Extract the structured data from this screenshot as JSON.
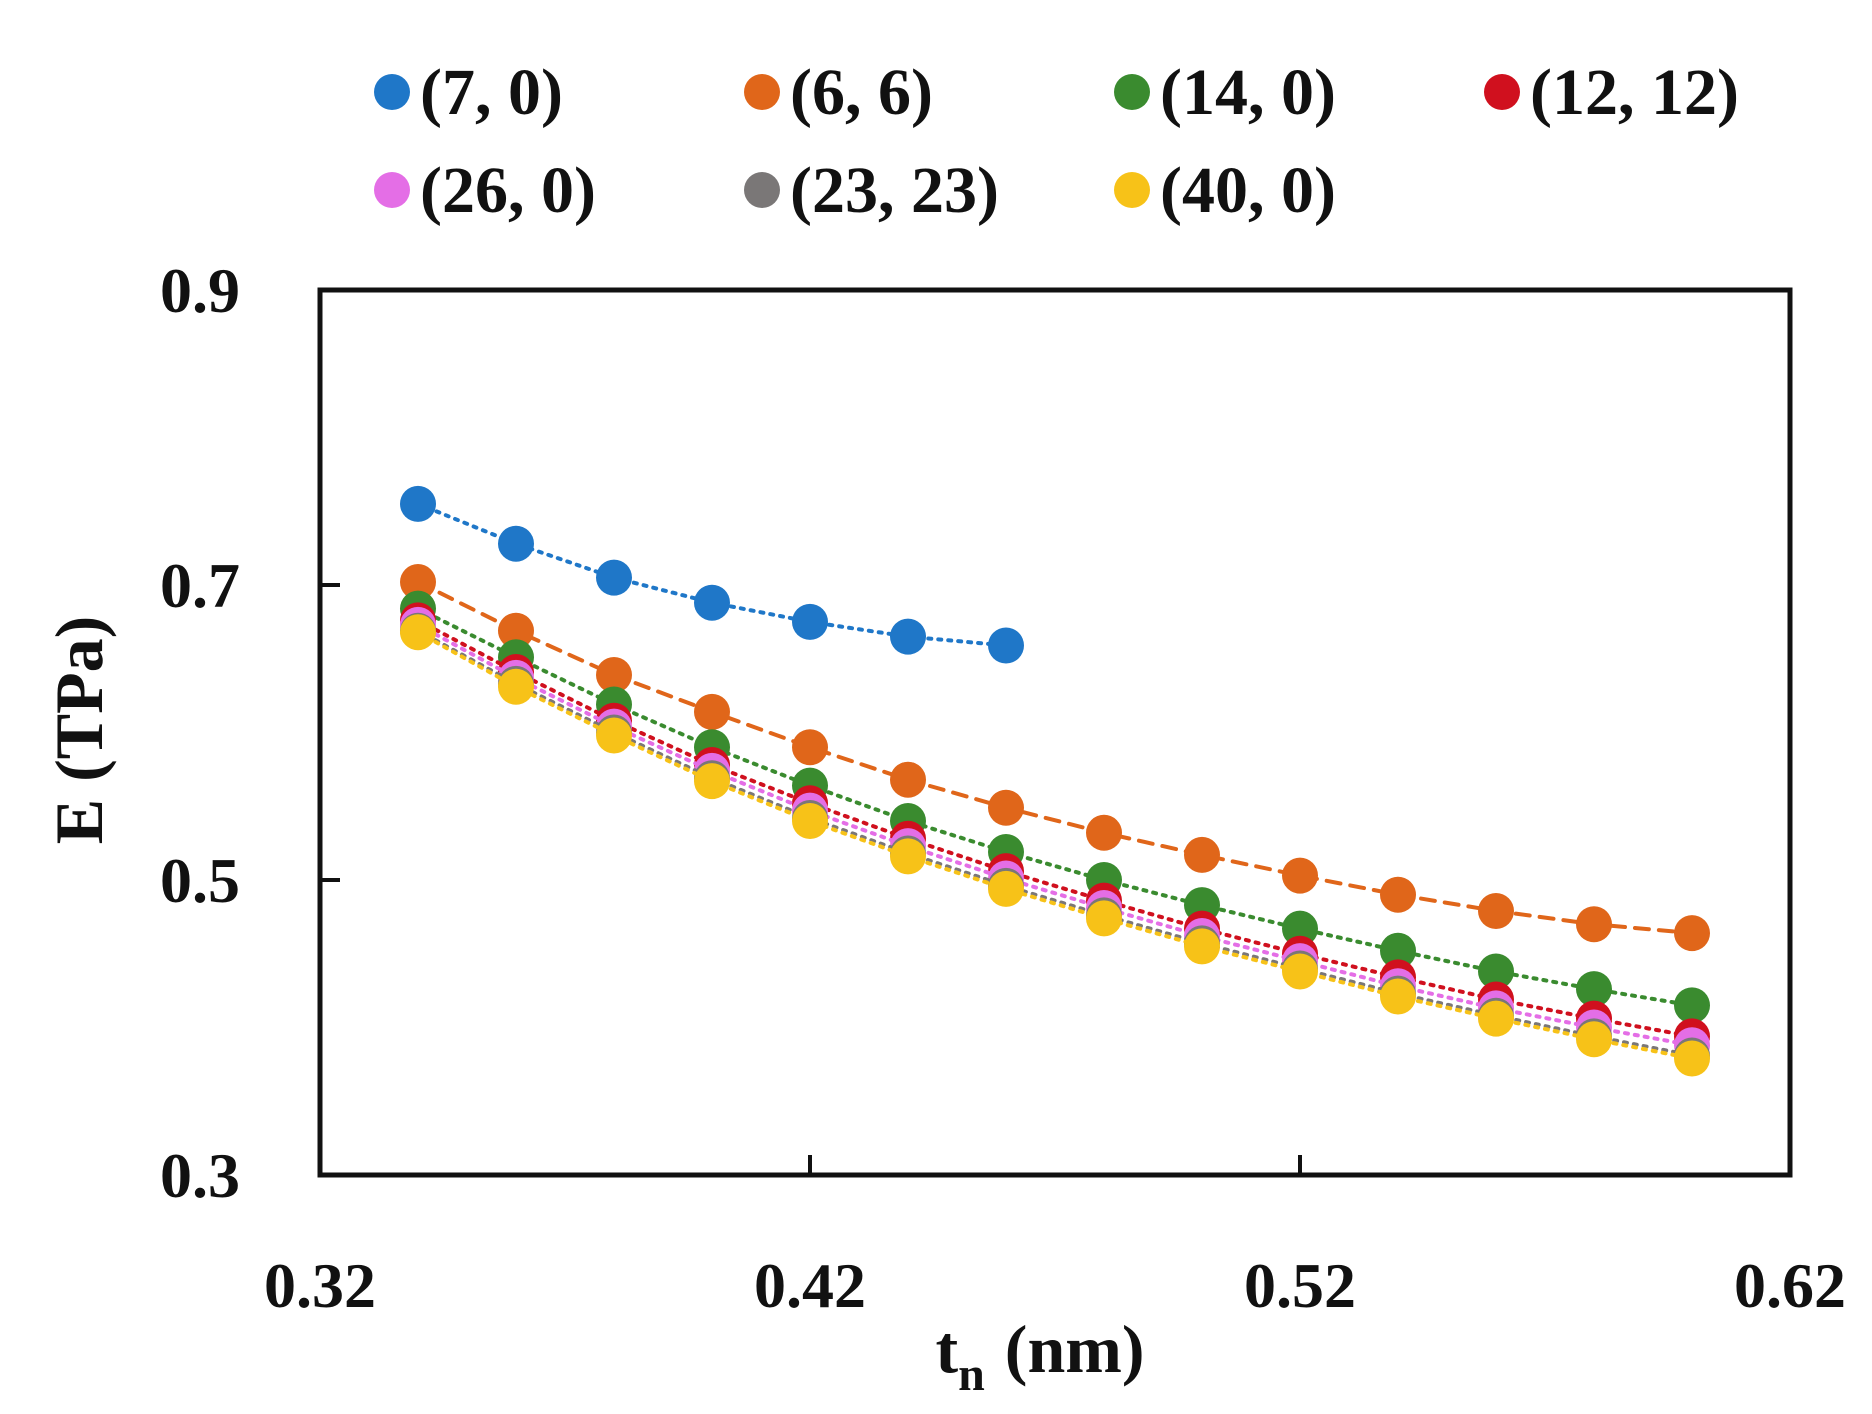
{
  "chart_data": {
    "type": "scatter",
    "title": "",
    "xlabel": "t",
    "xlabel_sub": "n",
    "xlabel_unit": "(nm)",
    "ylabel": "E (TPa)",
    "xlim": [
      0.32,
      0.62
    ],
    "ylim": [
      0.3,
      0.9
    ],
    "xticks": [
      0.32,
      0.42,
      0.52,
      0.62
    ],
    "xtick_labels": [
      "0.32",
      "0.42",
      "0.52",
      "0.62"
    ],
    "yticks": [
      0.3,
      0.5,
      0.7,
      0.9
    ],
    "ytick_labels": [
      "0.3",
      "0.5",
      "0.7",
      "0.9"
    ],
    "grid": false,
    "legend_position": "top",
    "series": [
      {
        "name": "(7, 0)",
        "color": "#1f77c8",
        "line": "dotted",
        "x": [
          0.34,
          0.36,
          0.38,
          0.4,
          0.42,
          0.44,
          0.46
        ],
        "y": [
          0.755,
          0.728,
          0.705,
          0.688,
          0.675,
          0.665,
          0.659
        ]
      },
      {
        "name": "(6, 6)",
        "color": "#e0661a",
        "line": "dashed",
        "x": [
          0.34,
          0.36,
          0.38,
          0.4,
          0.42,
          0.44,
          0.46,
          0.48,
          0.5,
          0.52,
          0.54,
          0.56,
          0.58,
          0.6
        ],
        "y": [
          0.702,
          0.669,
          0.639,
          0.614,
          0.59,
          0.568,
          0.549,
          0.532,
          0.517,
          0.503,
          0.49,
          0.479,
          0.47,
          0.464
        ]
      },
      {
        "name": "(14, 0)",
        "color": "#3a8b2f",
        "line": "dotted",
        "x": [
          0.34,
          0.36,
          0.38,
          0.4,
          0.42,
          0.44,
          0.46,
          0.48,
          0.5,
          0.52,
          0.54,
          0.56,
          0.58,
          0.6
        ],
        "y": [
          0.684,
          0.651,
          0.619,
          0.59,
          0.564,
          0.54,
          0.519,
          0.5,
          0.483,
          0.467,
          0.452,
          0.438,
          0.426,
          0.415
        ]
      },
      {
        "name": "(12, 12)",
        "color": "#d0101e",
        "line": "dotted",
        "x": [
          0.34,
          0.36,
          0.38,
          0.4,
          0.42,
          0.44,
          0.46,
          0.48,
          0.5,
          0.52,
          0.54,
          0.56,
          0.58,
          0.6
        ],
        "y": [
          0.676,
          0.641,
          0.608,
          0.578,
          0.552,
          0.528,
          0.506,
          0.486,
          0.467,
          0.45,
          0.434,
          0.419,
          0.406,
          0.394
        ]
      },
      {
        "name": "(26, 0)",
        "color": "#e46ee6",
        "line": "dotted",
        "x": [
          0.34,
          0.36,
          0.38,
          0.4,
          0.42,
          0.44,
          0.46,
          0.48,
          0.5,
          0.52,
          0.54,
          0.56,
          0.58,
          0.6
        ],
        "y": [
          0.673,
          0.637,
          0.604,
          0.574,
          0.547,
          0.523,
          0.501,
          0.481,
          0.462,
          0.445,
          0.428,
          0.413,
          0.4,
          0.388
        ]
      },
      {
        "name": "(23, 23)",
        "color": "#7a7777",
        "line": "dotted",
        "x": [
          0.34,
          0.36,
          0.38,
          0.4,
          0.42,
          0.44,
          0.46,
          0.48,
          0.5,
          0.52,
          0.54,
          0.56,
          0.58,
          0.6
        ],
        "y": [
          0.669,
          0.633,
          0.6,
          0.569,
          0.542,
          0.518,
          0.496,
          0.476,
          0.457,
          0.44,
          0.423,
          0.408,
          0.394,
          0.381
        ]
      },
      {
        "name": "(40, 0)",
        "color": "#f7c218",
        "line": "dotted",
        "x": [
          0.34,
          0.36,
          0.38,
          0.4,
          0.42,
          0.44,
          0.46,
          0.48,
          0.5,
          0.52,
          0.54,
          0.56,
          0.58,
          0.6
        ],
        "y": [
          0.668,
          0.631,
          0.598,
          0.567,
          0.54,
          0.516,
          0.494,
          0.474,
          0.455,
          0.438,
          0.421,
          0.406,
          0.392,
          0.379
        ]
      }
    ]
  }
}
